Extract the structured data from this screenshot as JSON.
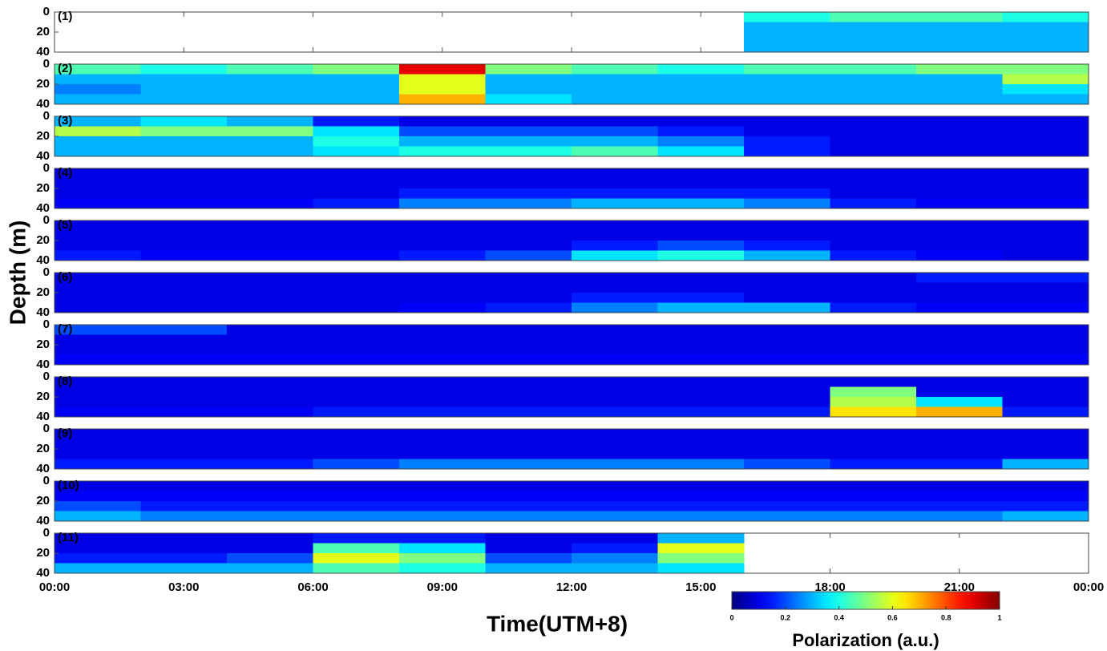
{
  "chart_data": {
    "type": "heatmap",
    "x_label": "Time(UTM+8)",
    "y_label": "Depth (m)",
    "colorbar_label": "Polarization (a.u.)",
    "colormap": "jet",
    "clim": [
      0,
      1
    ],
    "cticks": [
      0,
      0.2,
      0.4,
      0.6,
      0.8,
      1
    ],
    "xlim": [
      0,
      24
    ],
    "xticks": [
      {
        "value": 0,
        "label": "00:00"
      },
      {
        "value": 3,
        "label": "03:00"
      },
      {
        "value": 6,
        "label": "06:00"
      },
      {
        "value": 9,
        "label": "09:00"
      },
      {
        "value": 12,
        "label": "12:00"
      },
      {
        "value": 15,
        "label": "15:00"
      },
      {
        "value": 18,
        "label": "18:00"
      },
      {
        "value": 21,
        "label": "21:00"
      },
      {
        "value": 24,
        "label": "00:00"
      }
    ],
    "ylim": [
      0,
      40
    ],
    "y_inverted": true,
    "yticks": [
      0,
      20,
      40
    ],
    "x_bins": [
      0,
      2,
      4,
      6,
      8,
      10,
      12,
      14,
      16,
      18,
      20,
      22,
      24
    ],
    "y_bins": [
      0,
      10,
      20,
      30,
      40
    ],
    "panels": [
      {
        "label": "(1)",
        "values": [
          [
            null,
            null,
            null,
            null,
            null,
            null,
            null,
            null,
            0.4,
            0.45,
            0.45,
            0.4
          ],
          [
            null,
            null,
            null,
            null,
            null,
            null,
            null,
            null,
            0.3,
            0.3,
            0.3,
            0.3
          ],
          [
            null,
            null,
            null,
            null,
            null,
            null,
            null,
            null,
            0.3,
            0.3,
            0.3,
            0.3
          ],
          [
            null,
            null,
            null,
            null,
            null,
            null,
            null,
            null,
            0.3,
            0.3,
            0.3,
            0.3
          ]
        ]
      },
      {
        "label": "(2)",
        "values": [
          [
            0.45,
            0.4,
            0.45,
            0.5,
            0.9,
            0.5,
            0.45,
            0.4,
            0.45,
            0.45,
            0.5,
            0.5
          ],
          [
            0.3,
            0.3,
            0.3,
            0.3,
            0.6,
            0.3,
            0.3,
            0.3,
            0.3,
            0.3,
            0.3,
            0.55
          ],
          [
            0.25,
            0.3,
            0.3,
            0.3,
            0.6,
            0.3,
            0.3,
            0.3,
            0.3,
            0.3,
            0.3,
            0.35
          ],
          [
            0.3,
            0.3,
            0.3,
            0.3,
            0.7,
            0.35,
            0.3,
            0.3,
            0.3,
            0.3,
            0.3,
            0.3
          ]
        ]
      },
      {
        "label": "(3)",
        "values": [
          [
            0.3,
            0.35,
            0.3,
            0.15,
            0.1,
            0.1,
            0.1,
            0.1,
            0.1,
            0.1,
            0.1,
            0.1
          ],
          [
            0.55,
            0.5,
            0.5,
            0.35,
            0.2,
            0.2,
            0.2,
            0.15,
            0.1,
            0.1,
            0.1,
            0.1
          ],
          [
            0.3,
            0.3,
            0.3,
            0.4,
            0.3,
            0.3,
            0.3,
            0.25,
            0.15,
            0.1,
            0.1,
            0.1
          ],
          [
            0.3,
            0.3,
            0.3,
            0.35,
            0.4,
            0.4,
            0.45,
            0.35,
            0.15,
            0.1,
            0.1,
            0.1
          ]
        ]
      },
      {
        "label": "(4)",
        "values": [
          [
            0.1,
            0.1,
            0.1,
            0.1,
            0.1,
            0.1,
            0.1,
            0.1,
            0.1,
            0.1,
            0.1,
            0.1
          ],
          [
            0.1,
            0.1,
            0.1,
            0.1,
            0.1,
            0.1,
            0.1,
            0.1,
            0.1,
            0.1,
            0.1,
            0.1
          ],
          [
            0.1,
            0.1,
            0.1,
            0.1,
            0.15,
            0.15,
            0.15,
            0.15,
            0.15,
            0.1,
            0.1,
            0.1
          ],
          [
            0.12,
            0.12,
            0.12,
            0.15,
            0.25,
            0.25,
            0.3,
            0.3,
            0.25,
            0.15,
            0.12,
            0.12
          ]
        ]
      },
      {
        "label": "(5)",
        "values": [
          [
            0.1,
            0.1,
            0.1,
            0.1,
            0.1,
            0.1,
            0.1,
            0.1,
            0.1,
            0.1,
            0.1,
            0.1
          ],
          [
            0.1,
            0.1,
            0.1,
            0.1,
            0.1,
            0.1,
            0.1,
            0.1,
            0.1,
            0.1,
            0.1,
            0.1
          ],
          [
            0.1,
            0.1,
            0.1,
            0.1,
            0.1,
            0.1,
            0.15,
            0.2,
            0.15,
            0.1,
            0.1,
            0.1
          ],
          [
            0.15,
            0.12,
            0.12,
            0.12,
            0.15,
            0.2,
            0.35,
            0.4,
            0.3,
            0.15,
            0.12,
            0.1
          ]
        ]
      },
      {
        "label": "(6)",
        "values": [
          [
            0.1,
            0.1,
            0.1,
            0.1,
            0.1,
            0.1,
            0.1,
            0.1,
            0.1,
            0.1,
            0.15,
            0.15
          ],
          [
            0.1,
            0.1,
            0.1,
            0.1,
            0.1,
            0.1,
            0.1,
            0.1,
            0.1,
            0.1,
            0.1,
            0.1
          ],
          [
            0.1,
            0.1,
            0.1,
            0.1,
            0.1,
            0.1,
            0.15,
            0.15,
            0.1,
            0.1,
            0.1,
            0.1
          ],
          [
            0.1,
            0.1,
            0.1,
            0.1,
            0.12,
            0.15,
            0.25,
            0.3,
            0.3,
            0.15,
            0.12,
            0.12
          ]
        ]
      },
      {
        "label": "(7)",
        "values": [
          [
            0.2,
            0.2,
            0.1,
            0.1,
            0.1,
            0.1,
            0.1,
            0.1,
            0.1,
            0.1,
            0.1,
            0.1
          ],
          [
            0.1,
            0.1,
            0.1,
            0.1,
            0.1,
            0.1,
            0.1,
            0.1,
            0.1,
            0.1,
            0.1,
            0.1
          ],
          [
            0.1,
            0.1,
            0.1,
            0.1,
            0.1,
            0.1,
            0.1,
            0.1,
            0.1,
            0.1,
            0.1,
            0.1
          ],
          [
            0.12,
            0.12,
            0.12,
            0.12,
            0.12,
            0.12,
            0.12,
            0.12,
            0.12,
            0.12,
            0.12,
            0.12
          ]
        ]
      },
      {
        "label": "(8)",
        "values": [
          [
            0.1,
            0.1,
            0.1,
            0.1,
            0.1,
            0.1,
            0.1,
            0.1,
            0.1,
            0.1,
            0.1,
            0.1
          ],
          [
            0.1,
            0.1,
            0.1,
            0.1,
            0.1,
            0.1,
            0.1,
            0.1,
            0.1,
            0.5,
            0.1,
            0.1
          ],
          [
            0.1,
            0.1,
            0.1,
            0.1,
            0.1,
            0.1,
            0.1,
            0.1,
            0.1,
            0.55,
            0.35,
            0.1
          ],
          [
            0.12,
            0.12,
            0.12,
            0.15,
            0.15,
            0.15,
            0.15,
            0.15,
            0.15,
            0.65,
            0.7,
            0.15
          ]
        ]
      },
      {
        "label": "(9)",
        "values": [
          [
            0.1,
            0.1,
            0.1,
            0.1,
            0.1,
            0.1,
            0.1,
            0.1,
            0.1,
            0.1,
            0.1,
            0.1
          ],
          [
            0.1,
            0.1,
            0.1,
            0.1,
            0.1,
            0.1,
            0.1,
            0.1,
            0.1,
            0.1,
            0.1,
            0.1
          ],
          [
            0.1,
            0.1,
            0.1,
            0.1,
            0.1,
            0.1,
            0.1,
            0.1,
            0.1,
            0.1,
            0.1,
            0.1
          ],
          [
            0.15,
            0.15,
            0.15,
            0.2,
            0.25,
            0.25,
            0.25,
            0.25,
            0.2,
            0.15,
            0.15,
            0.3
          ]
        ]
      },
      {
        "label": "(10)",
        "values": [
          [
            0.1,
            0.1,
            0.1,
            0.1,
            0.1,
            0.1,
            0.1,
            0.1,
            0.1,
            0.1,
            0.1,
            0.1
          ],
          [
            0.12,
            0.12,
            0.12,
            0.12,
            0.12,
            0.12,
            0.12,
            0.12,
            0.12,
            0.12,
            0.12,
            0.12
          ],
          [
            0.2,
            0.15,
            0.15,
            0.15,
            0.15,
            0.15,
            0.15,
            0.15,
            0.15,
            0.15,
            0.15,
            0.15
          ],
          [
            0.3,
            0.25,
            0.25,
            0.25,
            0.25,
            0.25,
            0.25,
            0.25,
            0.25,
            0.25,
            0.25,
            0.3
          ]
        ]
      },
      {
        "label": "(11)",
        "values": [
          [
            0.1,
            0.1,
            0.1,
            0.15,
            0.15,
            0.1,
            0.1,
            0.3,
            null,
            null,
            null,
            null
          ],
          [
            0.1,
            0.1,
            0.1,
            0.45,
            0.35,
            0.1,
            0.15,
            0.6,
            null,
            null,
            null,
            null
          ],
          [
            0.15,
            0.15,
            0.2,
            0.6,
            0.5,
            0.2,
            0.25,
            0.5,
            null,
            null,
            null,
            null
          ],
          [
            0.3,
            0.3,
            0.3,
            0.45,
            0.4,
            0.3,
            0.3,
            0.35,
            null,
            null,
            null,
            null
          ]
        ]
      }
    ]
  }
}
